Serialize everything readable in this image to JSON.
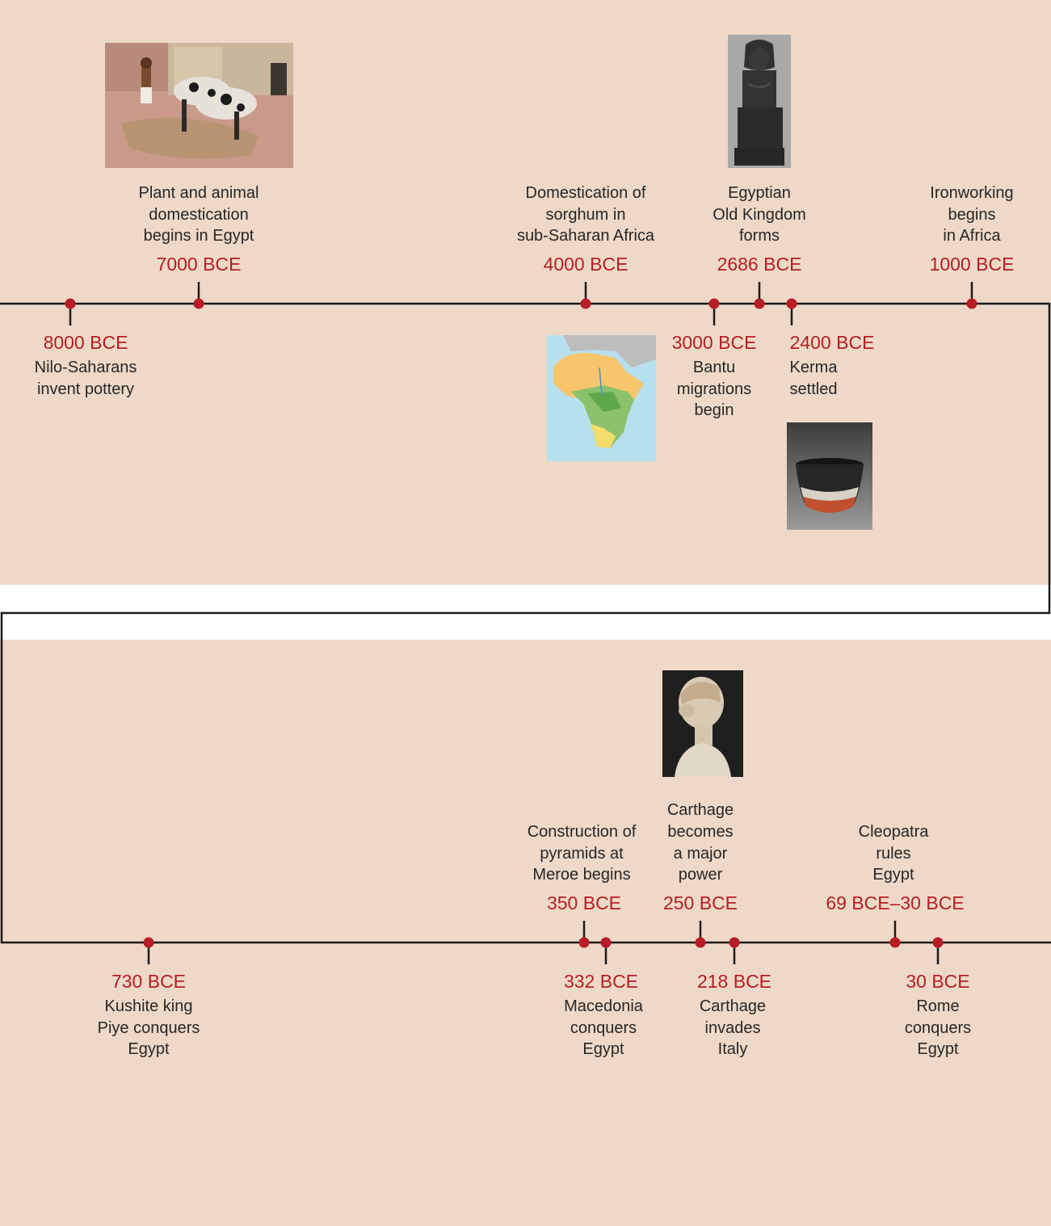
{
  "colors": {
    "panel": "#eed9c8",
    "line": "#1a1a1a",
    "marker": "#b81c25",
    "date_text": "#b81c25",
    "label_text": "#262626"
  },
  "rows": [
    {
      "events": [
        {
          "date": "8000 BCE",
          "label": "Nilo-Saharans\ninvent pottery",
          "side": "below"
        },
        {
          "date": "7000 BCE",
          "label": "Plant and animal\ndomestication\nbegins in Egypt",
          "side": "above",
          "image": "ox-plough-model-image"
        },
        {
          "date": "4000 BCE",
          "label": "Domestication of\nsorghum in\nsub-Saharan Africa",
          "side": "above"
        },
        {
          "date": "3000 BCE",
          "label": "Bantu\nmigrations\nbegin",
          "side": "below",
          "image": "africa-map-image"
        },
        {
          "date": "2686 BCE",
          "label": "Egyptian\nOld Kingdom\nforms",
          "side": "above",
          "image": "seated-statue-image"
        },
        {
          "date": "2400 BCE",
          "label": "Kerma\nsettled",
          "side": "below",
          "image": "kerma-beaker-image"
        },
        {
          "date": "1000 BCE",
          "label": "Ironworking\nbegins\nin Africa",
          "side": "above"
        }
      ]
    },
    {
      "events": [
        {
          "date": "730 BCE",
          "label": "Kushite king\nPiye conquers\nEgypt",
          "side": "below"
        },
        {
          "date": "350 BCE",
          "label": "Construction of\npyramids at\nMeroe begins",
          "side": "above"
        },
        {
          "date": "332 BCE",
          "label": "Macedonia\nconquers\nEgypt",
          "side": "below"
        },
        {
          "date": "250 BCE",
          "label": "Carthage\nbecomes\na major\npower",
          "side": "above",
          "image": "cleopatra-bust-image"
        },
        {
          "date": "218 BCE",
          "label": "Carthage\ninvades\nItaly",
          "side": "below"
        },
        {
          "date": "69 BCE–30 BCE",
          "label": "Cleopatra\nrules\nEgypt",
          "side": "above"
        },
        {
          "date": "30 BCE",
          "label": "Rome\nconquers\nEgypt",
          "side": "below"
        }
      ]
    }
  ]
}
